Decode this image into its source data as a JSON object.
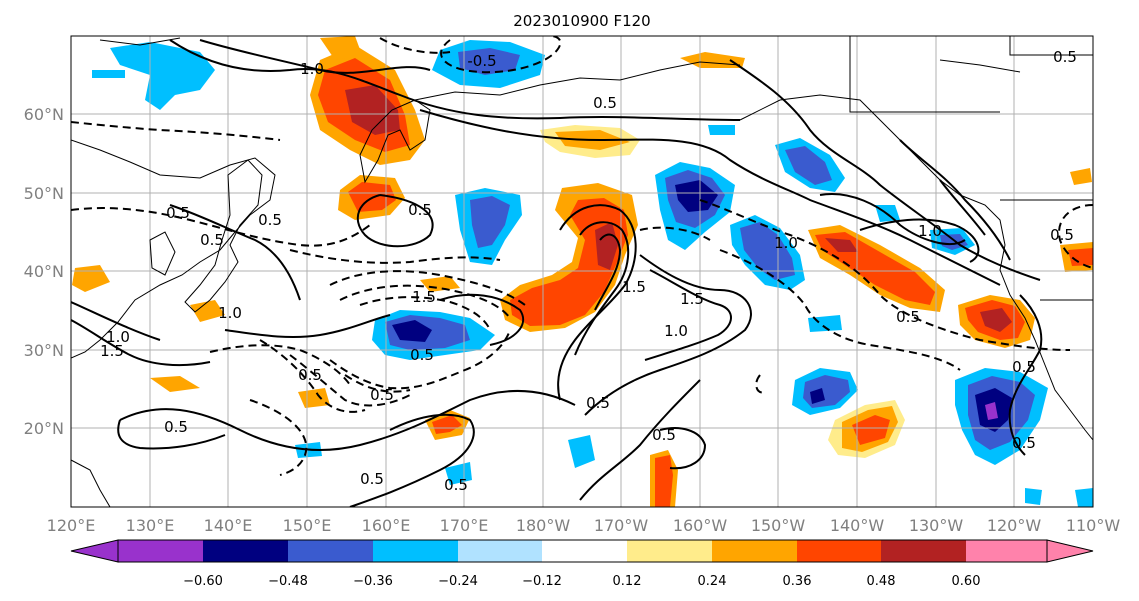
{
  "title": "2023010900 F120",
  "map": {
    "lon_ticks": [
      "120°E",
      "130°E",
      "140°E",
      "150°E",
      "160°E",
      "170°E",
      "180°W",
      "170°W",
      "160°W",
      "150°W",
      "140°W",
      "130°W",
      "120°W",
      "110°W"
    ],
    "lat_ticks": [
      "60°N",
      "50°N",
      "40°N",
      "30°N",
      "20°N"
    ],
    "extent": {
      "lon_min": 120,
      "lon_max": 250,
      "lat_min": 10,
      "lat_max": 70
    },
    "grid": true
  },
  "colorbar": {
    "tick_labels": [
      "−0.60",
      "−0.48",
      "−0.36",
      "−0.24",
      "−0.12",
      "0.12",
      "0.24",
      "0.36",
      "0.48",
      "0.60"
    ],
    "colors": [
      "#9932cc",
      "#000080",
      "#3a5bcf",
      "#00bfff",
      "#b0e2ff",
      "#ffffff",
      "#ffec8b",
      "#ffa500",
      "#ff4500",
      "#b22222",
      "#ff82ab"
    ],
    "extend": "both"
  },
  "colors": {
    "frame": "#000000",
    "grid": "#b0b0b0",
    "label": "#808080",
    "coast": "#000000"
  },
  "contour_labels": [
    {
      "text": "1.0"
    },
    {
      "text": "-0.5"
    },
    {
      "text": "0.5"
    },
    {
      "text": "0.5"
    },
    {
      "text": "0.5"
    },
    {
      "text": "0.5"
    },
    {
      "text": "1.0"
    },
    {
      "text": "1.0"
    },
    {
      "text": "1.5"
    },
    {
      "text": "1.5"
    },
    {
      "text": "1.5"
    },
    {
      "text": "1.5"
    },
    {
      "text": "1.0"
    },
    {
      "text": "0.5"
    },
    {
      "text": "0.5"
    },
    {
      "text": "0.5"
    },
    {
      "text": "0.5"
    },
    {
      "text": "0.5"
    },
    {
      "text": "0.5"
    },
    {
      "text": "0.5"
    },
    {
      "text": "0.5"
    },
    {
      "text": "0.5"
    },
    {
      "text": "1.0"
    },
    {
      "text": "0.5"
    },
    {
      "text": "0.5"
    },
    {
      "text": "1.0"
    },
    {
      "text": "0.5"
    },
    {
      "text": "0.5"
    },
    {
      "text": "0.5"
    }
  ]
}
